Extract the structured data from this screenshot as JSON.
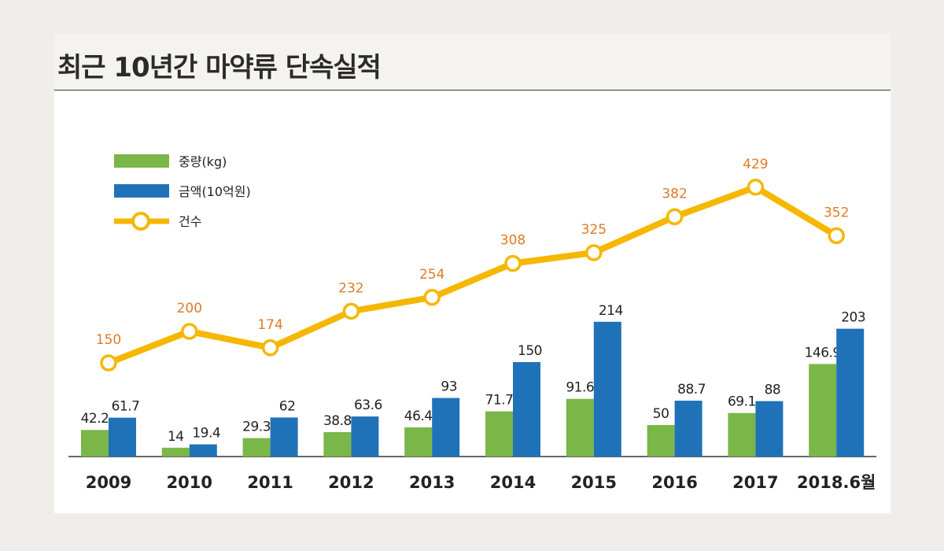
{
  "title": "최근 10년간 마약류 단속실적",
  "colors": {
    "weight": "#7ab648",
    "amount": "#1f72b8",
    "cases": "#f5b700",
    "case_label": "#e07b28",
    "highlight_category": "#d0202e"
  },
  "chart_data": {
    "type": "bar",
    "categories": [
      "2009",
      "2010",
      "2011",
      "2012",
      "2013",
      "2014",
      "2015",
      "2016",
      "2017",
      "2018.6월"
    ],
    "highlight_index": 9,
    "series": [
      {
        "name": "중량(kg)",
        "type": "bar",
        "values": [
          42.2,
          14,
          29.3,
          38.8,
          46.4,
          71.7,
          91.6,
          50,
          69.1,
          146.9
        ]
      },
      {
        "name": "금액(10억원)",
        "type": "bar",
        "values": [
          61.7,
          19.4,
          62,
          63.6,
          93,
          150,
          214,
          88.7,
          88,
          203
        ]
      },
      {
        "name": "건수",
        "type": "line",
        "values": [
          150,
          200,
          174,
          232,
          254,
          308,
          325,
          382,
          429,
          352
        ]
      }
    ],
    "legend_position": "top-left",
    "grid": false
  }
}
